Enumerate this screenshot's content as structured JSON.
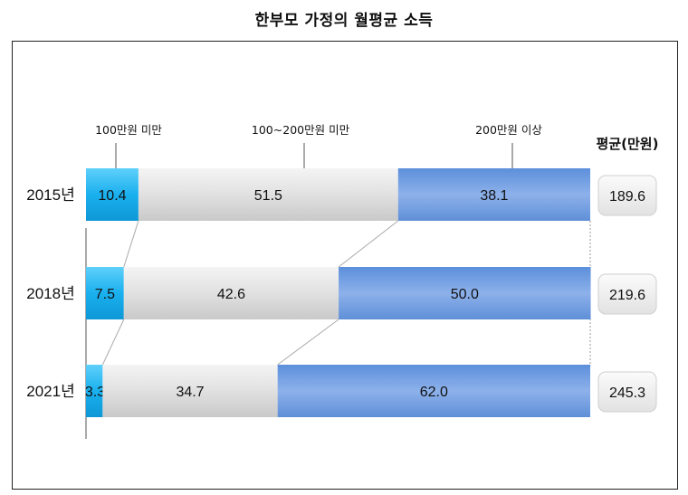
{
  "title": "한부모 가정의 월평균 소득",
  "chart_data": {
    "type": "bar",
    "stacked": true,
    "orientation": "horizontal",
    "categories": [
      "2015년",
      "2018년",
      "2021년"
    ],
    "series": [
      {
        "name": "100만원 미만",
        "values": [
          10.4,
          7.5,
          3.3
        ],
        "color": "#29b6f0"
      },
      {
        "name": "100~200만원 미만",
        "values": [
          51.5,
          42.6,
          34.7
        ],
        "color": "#d9d9d9"
      },
      {
        "name": "200만원 이상",
        "values": [
          38.1,
          50.0,
          62.0
        ],
        "color": "#6f9de0"
      }
    ],
    "value_labels": [
      [
        "10.4",
        "51.5",
        "38.1"
      ],
      [
        "7.5",
        "42.6",
        "50.0"
      ],
      [
        "3.3",
        "34.7",
        "62.0"
      ]
    ],
    "average_header": "평균(만원)",
    "averages": [
      "189.6",
      "219.6",
      "245.3"
    ],
    "xlim": [
      0,
      100
    ]
  }
}
